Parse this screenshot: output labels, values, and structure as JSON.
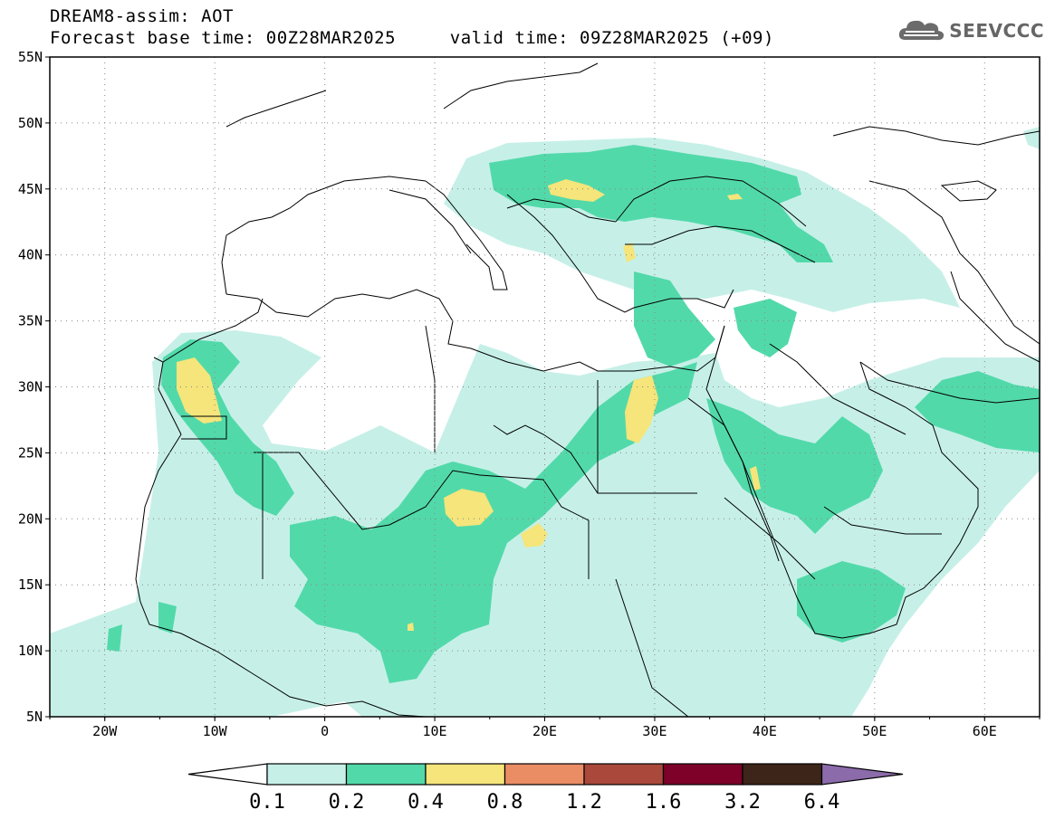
{
  "header": {
    "title": "DREAM8-assim: AOT",
    "base_time_label": "Forecast base time: 00Z28MAR2025",
    "valid_time_label": "valid time: 09Z28MAR2025 (+09)",
    "logo_text": "SEEVCCC",
    "logo_icon": "cloud-icon"
  },
  "map": {
    "lon_range": [
      -25,
      65
    ],
    "lat_range": [
      5,
      55
    ],
    "lat_ticks": [
      "55N",
      "50N",
      "45N",
      "40N",
      "35N",
      "30N",
      "25N",
      "20N",
      "15N",
      "10N",
      "5N"
    ],
    "lon_ticks": [
      "20W",
      "10W",
      "0",
      "10E",
      "20E",
      "30E",
      "40E",
      "50E",
      "60E"
    ],
    "gridlines": "dotted"
  },
  "colorbar": {
    "labels": [
      "0.1",
      "0.2",
      "0.4",
      "0.8",
      "1.2",
      "1.6",
      "3.2",
      "6.4"
    ],
    "colors": [
      "#ffffff",
      "#c6f0e7",
      "#52d9aa",
      "#f5e57a",
      "#ea8d64",
      "#a9483b",
      "#7d0128",
      "#3d2519",
      "#8b6baa"
    ]
  },
  "colors": {
    "aot_0_1": "#c6f0e7",
    "aot_0_2": "#52d9aa",
    "aot_0_4": "#f5e57a",
    "coastline": "#000000"
  }
}
